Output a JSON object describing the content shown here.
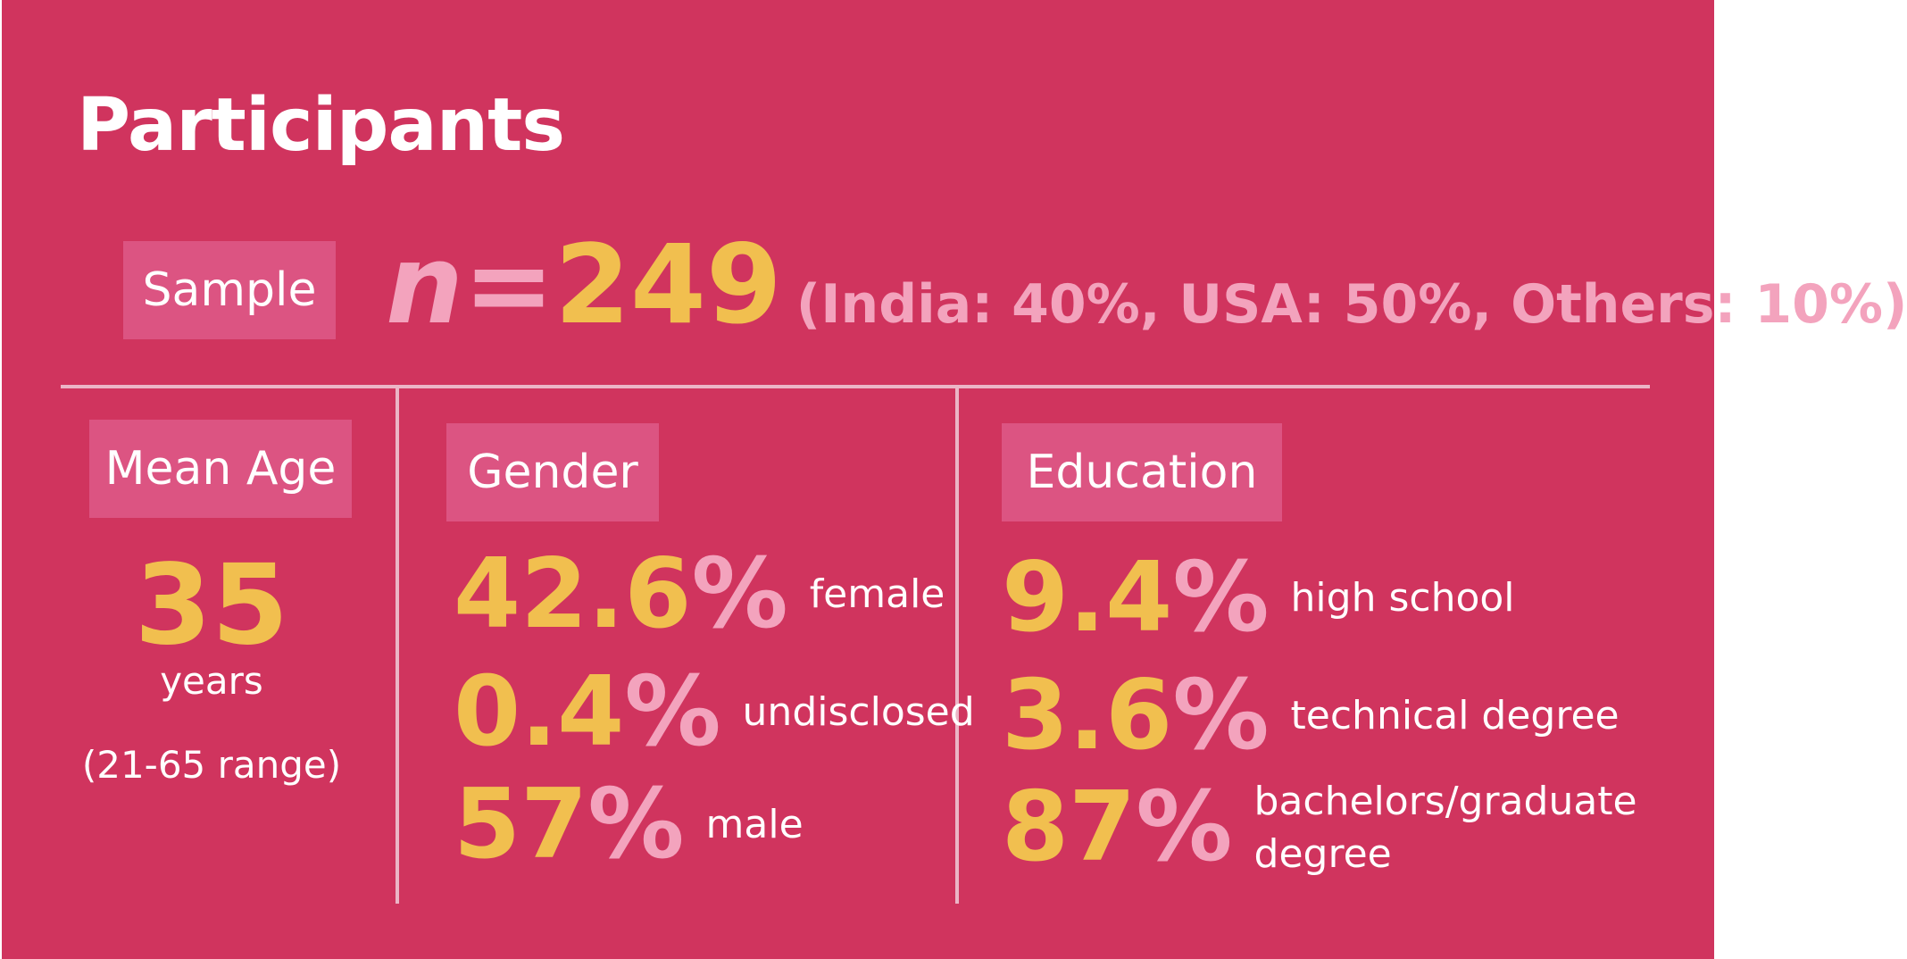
{
  "title": "Participants",
  "sample": {
    "label": "Sample",
    "n_letter": "n",
    "n_eq": "=",
    "n_value": "249",
    "breakdown": "(India: 40%, USA: 50%, Others: 10%)"
  },
  "age": {
    "label": "Mean Age",
    "value": "35",
    "unit": "years",
    "range": "(21-65 range)"
  },
  "gender": {
    "label": "Gender",
    "items": [
      {
        "num": "42.6",
        "sign": "%",
        "desc": "female"
      },
      {
        "num": "0.4",
        "sign": "%",
        "desc": "undisclosed"
      },
      {
        "num": "57",
        "sign": "%",
        "desc": "male"
      }
    ]
  },
  "education": {
    "label": "Education",
    "items": [
      {
        "num": "9.4",
        "sign": "%",
        "desc": "high school"
      },
      {
        "num": "3.6",
        "sign": "%",
        "desc": "technical degree"
      },
      {
        "num": "87",
        "sign": "%",
        "desc": "bachelors/graduate degree"
      }
    ]
  },
  "colors": {
    "background": "#d0345e",
    "label_box": "#dc5482",
    "accent_yellow": "#f1bf4f",
    "accent_pink": "#f3a3bd",
    "text": "#ffffff"
  }
}
